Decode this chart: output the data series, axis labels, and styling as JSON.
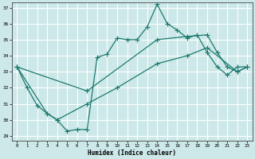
{
  "xlabel": "Humidex (Indice chaleur)",
  "xlim": [
    -0.5,
    23.5
  ],
  "ylim": [
    28.7,
    37.3
  ],
  "yticks": [
    29,
    30,
    31,
    32,
    33,
    34,
    35,
    36,
    37
  ],
  "xticks": [
    0,
    1,
    2,
    3,
    4,
    5,
    6,
    7,
    8,
    9,
    10,
    11,
    12,
    13,
    14,
    15,
    16,
    17,
    18,
    19,
    20,
    21,
    22,
    23
  ],
  "bg_color": "#cde8e8",
  "grid_color": "#ffffff",
  "line_color": "#1a7a6e",
  "lines": [
    {
      "x": [
        0,
        1,
        2,
        3,
        4,
        5,
        6,
        7,
        8,
        9,
        10,
        11,
        12,
        13,
        14,
        15,
        16,
        17,
        18,
        19,
        20,
        21,
        22,
        23
      ],
      "y": [
        33.3,
        32.0,
        30.9,
        30.4,
        30.0,
        29.3,
        29.4,
        29.4,
        33.9,
        34.1,
        35.1,
        35.0,
        35.0,
        35.8,
        37.2,
        36.0,
        35.6,
        35.1,
        35.3,
        34.2,
        33.3,
        32.8,
        33.3,
        33.3
      ]
    },
    {
      "x": [
        0,
        7,
        14,
        17,
        19,
        20,
        21,
        22,
        23
      ],
      "y": [
        33.3,
        31.8,
        35.0,
        35.2,
        35.3,
        34.2,
        33.3,
        33.0,
        33.3
      ]
    },
    {
      "x": [
        0,
        3,
        4,
        7,
        10,
        14,
        17,
        19,
        22,
        23
      ],
      "y": [
        33.3,
        30.4,
        30.0,
        31.0,
        32.0,
        33.5,
        34.0,
        34.5,
        33.0,
        33.3
      ]
    }
  ],
  "marker": "+",
  "markersize": 4.0,
  "linewidth": 0.9
}
